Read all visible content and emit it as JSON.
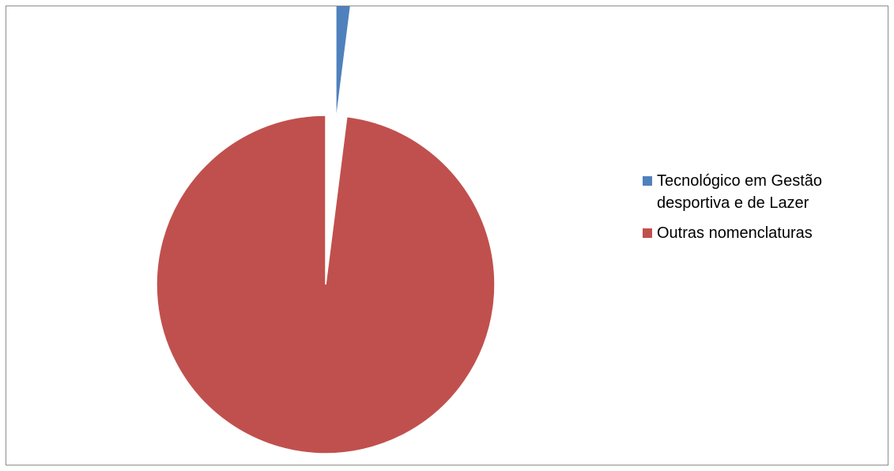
{
  "chart_data": {
    "type": "pie",
    "title": "",
    "legend_position": "right",
    "exploded": true,
    "slices": [
      {
        "label": " Tecnológico em Gestão desportiva e de Lazer",
        "value": 2,
        "color": "#4F81BD"
      },
      {
        "label": "Outras nomenclaturas",
        "value": 98,
        "color": "#C0504D"
      }
    ]
  }
}
